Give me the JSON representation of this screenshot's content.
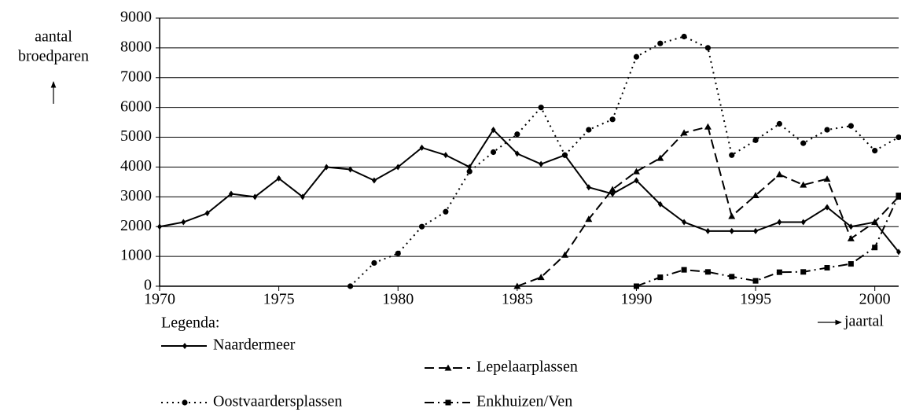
{
  "chart_data": {
    "type": "line",
    "ylabel": [
      "aantal",
      "broedparen"
    ],
    "xlabel": "jaartal",
    "legend_title": "Legenda:",
    "xlim": [
      1970,
      2001
    ],
    "xticks": [
      1970,
      1975,
      1980,
      1985,
      1990,
      1995,
      2000
    ],
    "ylim": [
      0,
      9000
    ],
    "yticks": [
      0,
      1000,
      2000,
      3000,
      4000,
      5000,
      6000,
      7000,
      8000,
      9000
    ],
    "grid": true,
    "series": [
      {
        "name": "Naardermeer",
        "color": "#000000",
        "dash": "solid",
        "marker": "diamond",
        "x": [
          1970,
          1971,
          1972,
          1973,
          1974,
          1975,
          1976,
          1977,
          1978,
          1979,
          1980,
          1981,
          1982,
          1983,
          1984,
          1985,
          1986,
          1987,
          1988,
          1989,
          1990,
          1991,
          1992,
          1993,
          1994,
          1995,
          1996,
          1997,
          1998,
          1999,
          2000,
          2001
        ],
        "values": [
          2000,
          2150,
          2450,
          3100,
          3000,
          3620,
          3000,
          4000,
          3920,
          3550,
          4000,
          4650,
          4400,
          4000,
          5250,
          4450,
          4100,
          4400,
          3320,
          3100,
          3550,
          2750,
          2150,
          1850,
          1850,
          1850,
          2150,
          2150,
          2650,
          2000,
          2150,
          1150
        ]
      },
      {
        "name": "Oostvaardersplassen",
        "color": "#000000",
        "dash": "dotted",
        "marker": "circle",
        "x": [
          1978,
          1979,
          1980,
          1981,
          1982,
          1983,
          1984,
          1985,
          1986,
          1987,
          1988,
          1989,
          1990,
          1991,
          1992,
          1993,
          1994,
          1995,
          1996,
          1997,
          1998,
          1999,
          2000,
          2001
        ],
        "values": [
          0,
          780,
          1100,
          2000,
          2500,
          3850,
          4500,
          5100,
          6000,
          4400,
          5250,
          5600,
          7700,
          8150,
          8380,
          8000,
          4400,
          4900,
          5450,
          4800,
          5250,
          5380,
          4550,
          5000
        ]
      },
      {
        "name": "Lepelaarplassen",
        "color": "#000000",
        "dash": "dashed",
        "marker": "triangle",
        "x": [
          1985,
          1986,
          1987,
          1988,
          1989,
          1990,
          1991,
          1992,
          1993,
          1994,
          1995,
          1996,
          1997,
          1998,
          1999,
          2000,
          2001
        ],
        "values": [
          0,
          300,
          1050,
          2250,
          3250,
          3850,
          4300,
          5150,
          5350,
          2350,
          3050,
          3750,
          3400,
          3600,
          1600,
          2150,
          3000
        ]
      },
      {
        "name": "Enkhuizen/Ven",
        "color": "#000000",
        "dash": "dashdot",
        "marker": "square",
        "x": [
          1990,
          1991,
          1992,
          1993,
          1994,
          1995,
          1996,
          1997,
          1998,
          1999,
          2000,
          2001
        ],
        "values": [
          0,
          300,
          550,
          480,
          320,
          180,
          470,
          480,
          620,
          750,
          1300,
          3050
        ]
      }
    ]
  }
}
